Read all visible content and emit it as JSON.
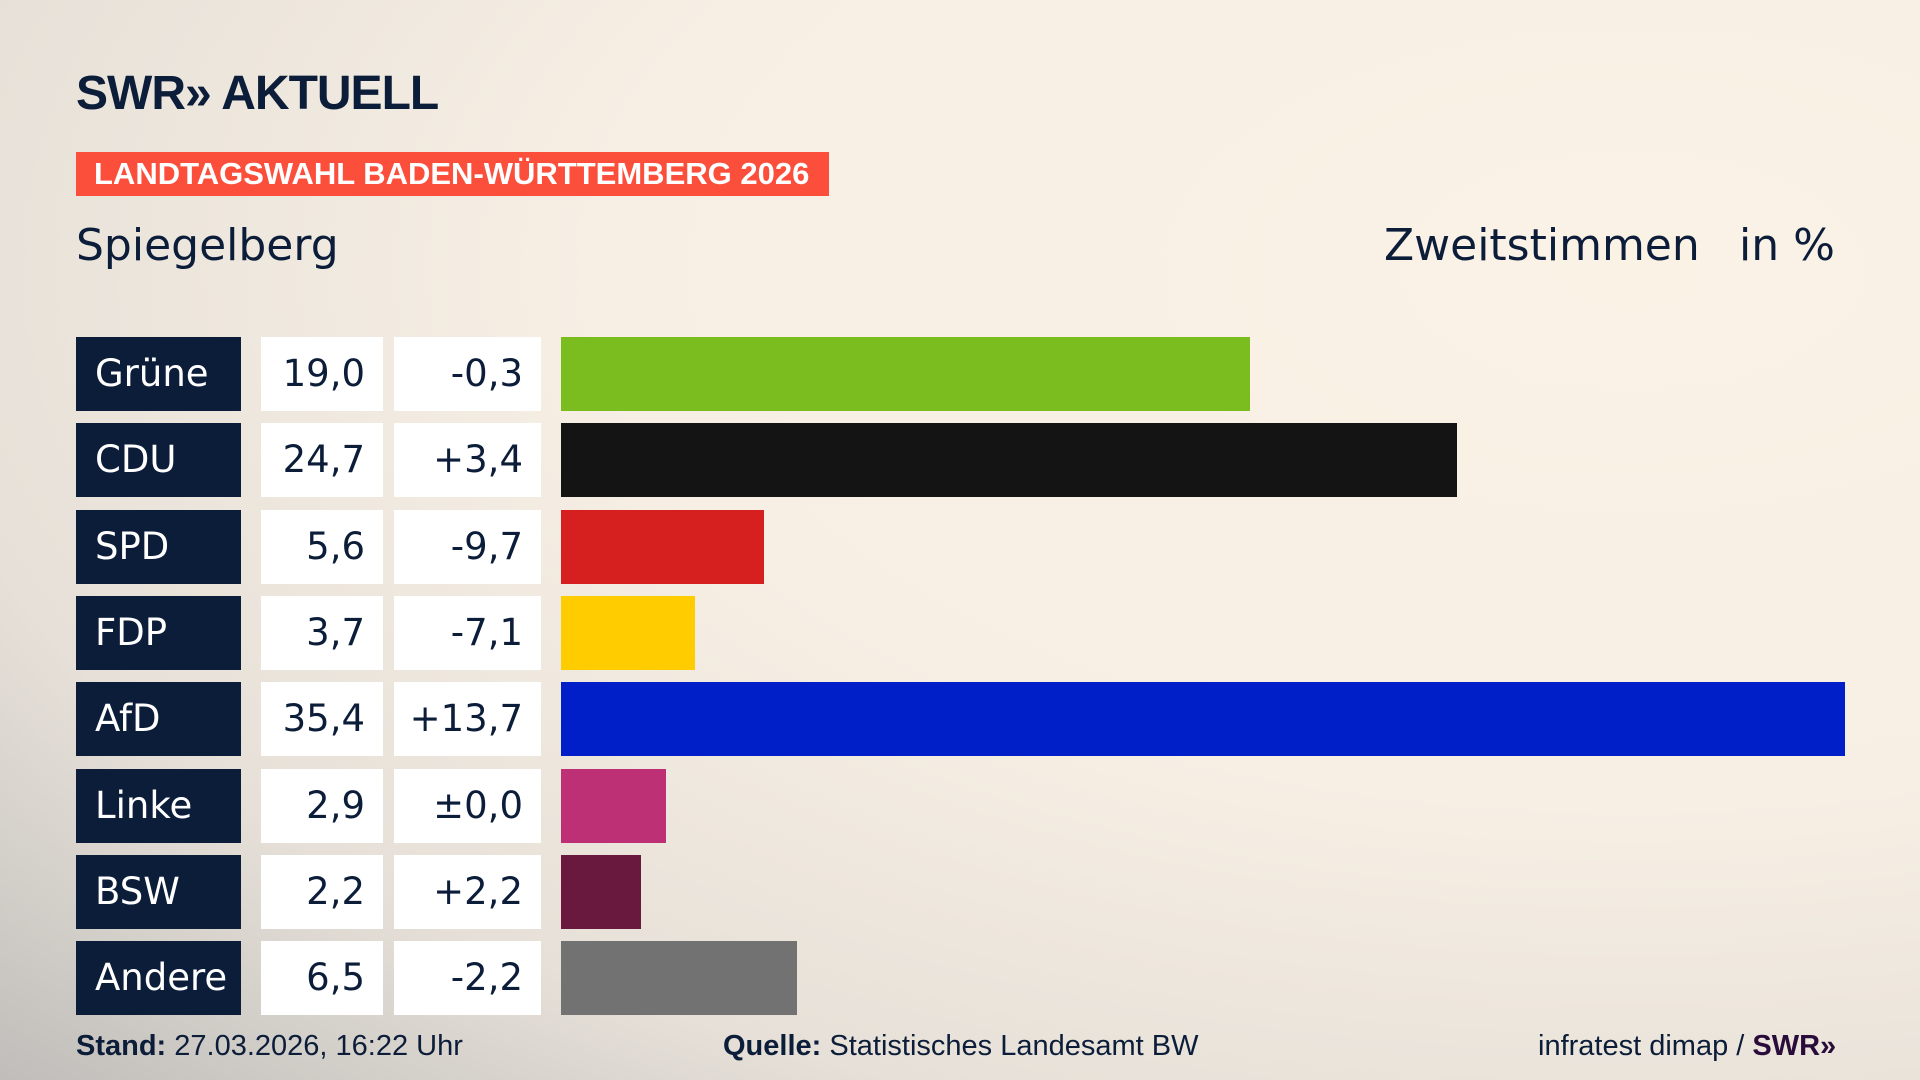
{
  "header": {
    "logo_text": "SWR» AKTUELL",
    "banner": "LANDTAGSWAHL BADEN-WÜRTTEMBERG 2026",
    "banner_color": "#fb4f3c",
    "place": "Spiegelberg",
    "metric": "Zweitstimmen",
    "unit": "in %"
  },
  "chart_data": {
    "type": "bar",
    "orientation": "horizontal",
    "categories": [
      "Grüne",
      "CDU",
      "SPD",
      "FDP",
      "AfD",
      "Linke",
      "BSW",
      "Andere"
    ],
    "values": [
      19.0,
      24.7,
      5.6,
      3.7,
      35.4,
      2.9,
      2.2,
      6.5
    ],
    "value_labels": [
      "19,0",
      "24,7",
      "5,6",
      "3,7",
      "35,4",
      "2,9",
      "2,2",
      "6,5"
    ],
    "change_labels": [
      "-0,3",
      "+3,4",
      "-9,7",
      "-7,1",
      "+13,7",
      "±0,0",
      "+2,2",
      "-2,2"
    ],
    "changes": [
      -0.3,
      3.4,
      -9.7,
      -7.1,
      13.7,
      0.0,
      2.2,
      -2.2
    ],
    "colors": [
      "#7bbd1e",
      "#141414",
      "#d62020",
      "#ffcc00",
      "#001fc8",
      "#bd3075",
      "#69193e",
      "#727272"
    ],
    "xlim": [
      0,
      35.4
    ]
  },
  "footer": {
    "stand_label": "Stand:",
    "stand_value": " 27.03.2026, 16:22 Uhr",
    "source_label": "Quelle:",
    "source_value": " Statistisches Landesamt BW",
    "credit": "infratest dimap / ",
    "credit_logo": "SWR»"
  }
}
